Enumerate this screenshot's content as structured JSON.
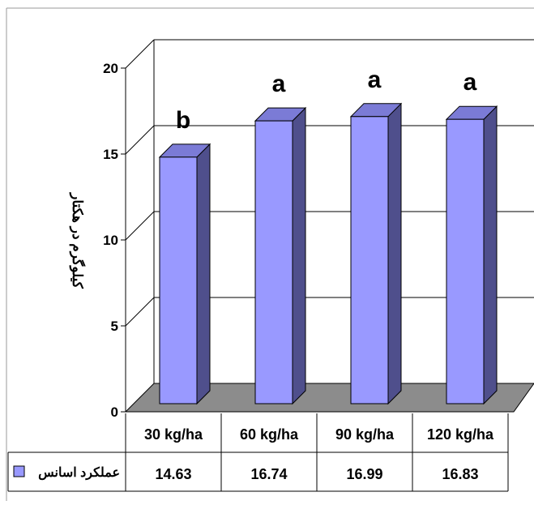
{
  "chart_data": {
    "type": "bar",
    "ylabel": "کیلوگرم در هکتار",
    "ylim": [
      0,
      20
    ],
    "yticks": [
      0,
      5,
      10,
      15,
      20
    ],
    "categories": [
      "30 kg/ha",
      "60 kg/ha",
      "90 kg/ha",
      "120 kg/ha"
    ],
    "series": [
      {
        "name": "عملکرد اسانس",
        "values": [
          14.63,
          16.74,
          16.99,
          16.83
        ],
        "value_labels": [
          "14.63",
          "16.74",
          "16.99",
          "16.83"
        ],
        "significance_letters": [
          "b",
          "a",
          "a",
          "a"
        ]
      }
    ],
    "grid": true,
    "legend": "table-left",
    "colors": {
      "bar_front": "#9999ff",
      "bar_side": "#4f4f8c",
      "bar_top": "#7b7bd6",
      "floor": "#8c8c8c",
      "legend_swatch": "#9999ff"
    }
  }
}
